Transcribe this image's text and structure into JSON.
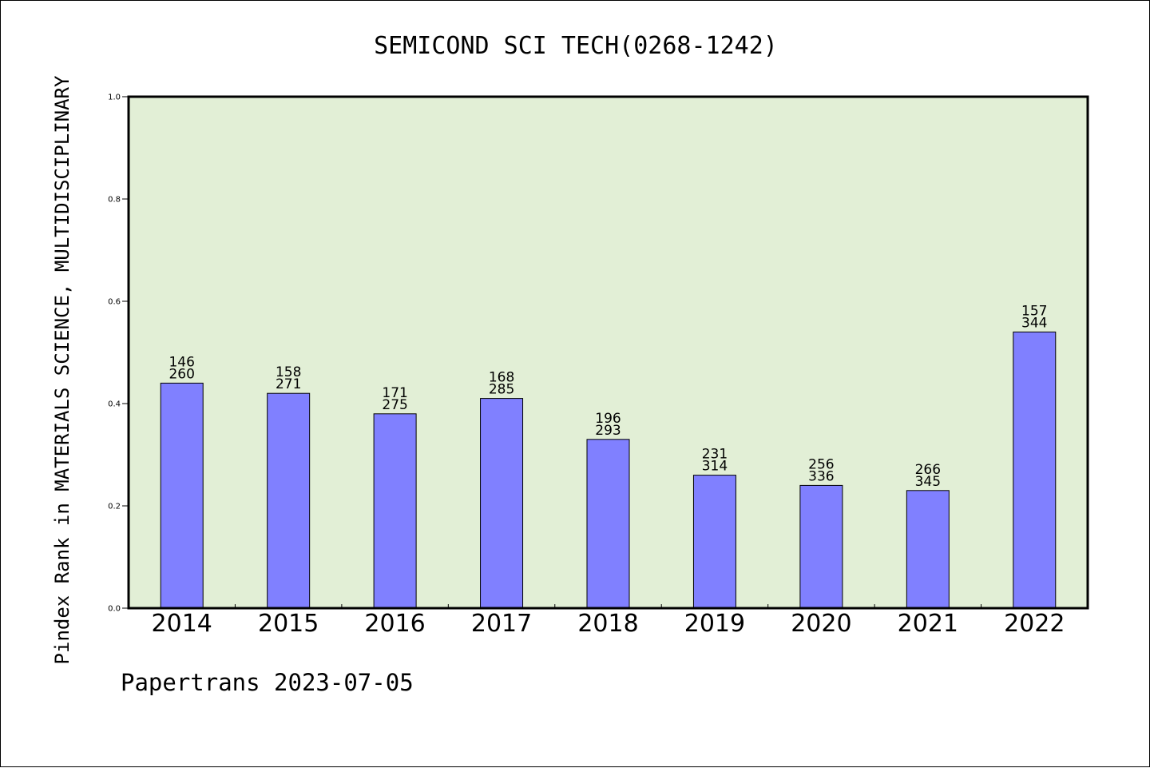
{
  "chart_data": {
    "type": "bar",
    "title": "SEMICOND SCI TECH(0268-1242)",
    "ylabel": "Pindex Rank in MATERIALS SCIENCE, MULTIDISCIPLINARY",
    "xlabel": "",
    "ylim": [
      0.0,
      1.0
    ],
    "yticks": [
      "0.0",
      "0.2",
      "0.4",
      "0.6",
      "0.8",
      "1.0"
    ],
    "ytick_values": [
      0.0,
      0.2,
      0.4,
      0.6,
      0.8,
      1.0
    ],
    "categories": [
      "2014",
      "2015",
      "2016",
      "2017",
      "2018",
      "2019",
      "2020",
      "2021",
      "2022"
    ],
    "values": [
      0.44,
      0.42,
      0.38,
      0.41,
      0.33,
      0.26,
      0.24,
      0.23,
      0.54
    ],
    "labels_top": [
      "146",
      "158",
      "171",
      "168",
      "196",
      "231",
      "256",
      "266",
      "157"
    ],
    "labels_bottom": [
      "260",
      "271",
      "275",
      "285",
      "293",
      "314",
      "336",
      "345",
      "344"
    ],
    "grid": false,
    "colors": {
      "bar": "#8080ff",
      "plot_background": "#e2efd6",
      "axis": "#000000"
    }
  },
  "footer": "Papertrans 2023-07-05"
}
